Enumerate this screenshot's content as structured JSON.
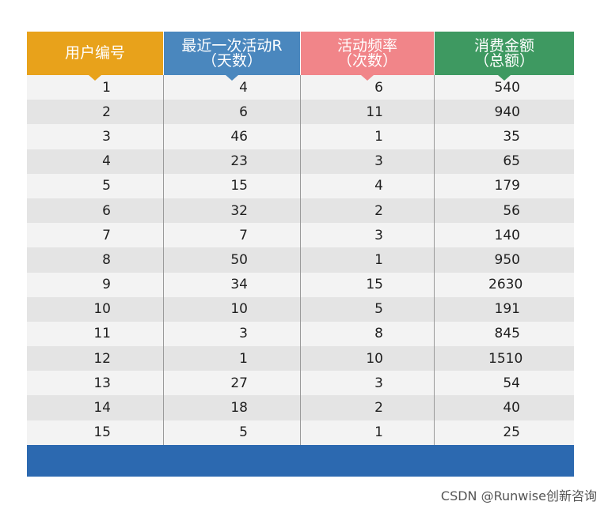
{
  "colors": {
    "header_user": "#E8A21B",
    "header_recency": "#4A87BE",
    "header_frequency": "#F18589",
    "header_monetary": "#3E9961",
    "footer": "#2C69B0"
  },
  "table": {
    "headers": [
      {
        "line1": "用户编号",
        "line2": ""
      },
      {
        "line1": "最近一次活动R",
        "line2": "（天数）"
      },
      {
        "line1": "活动频率",
        "line2": "（次数）"
      },
      {
        "line1": "消费金额",
        "line2": "（总额）"
      }
    ],
    "rows": [
      [
        "1",
        "4",
        "6",
        "540"
      ],
      [
        "2",
        "6",
        "11",
        "940"
      ],
      [
        "3",
        "46",
        "1",
        "35"
      ],
      [
        "4",
        "23",
        "3",
        "65"
      ],
      [
        "5",
        "15",
        "4",
        "179"
      ],
      [
        "6",
        "32",
        "2",
        "56"
      ],
      [
        "7",
        "7",
        "3",
        "140"
      ],
      [
        "8",
        "50",
        "1",
        "950"
      ],
      [
        "9",
        "34",
        "15",
        "2630"
      ],
      [
        "10",
        "10",
        "5",
        "191"
      ],
      [
        "11",
        "3",
        "8",
        "845"
      ],
      [
        "12",
        "1",
        "10",
        "1510"
      ],
      [
        "13",
        "27",
        "3",
        "54"
      ],
      [
        "14",
        "18",
        "2",
        "40"
      ],
      [
        "15",
        "5",
        "1",
        "25"
      ]
    ]
  },
  "watermark": "CSDN @Runwise创新咨询"
}
